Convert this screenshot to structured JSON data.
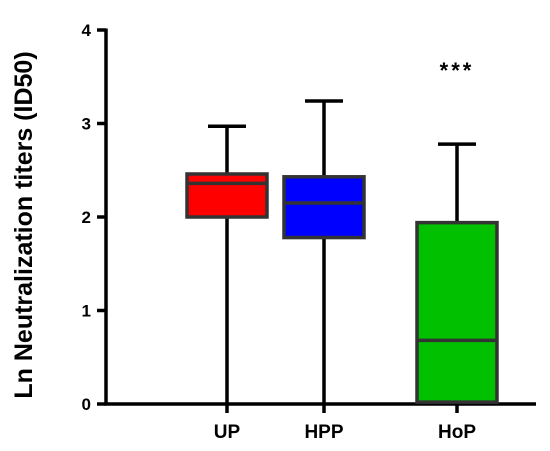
{
  "chart_data": {
    "type": "box",
    "ylabel": "Ln Neutralization titers (ID50)",
    "xlabel": "",
    "ylim": [
      0,
      4
    ],
    "yticks": [
      "0",
      "1",
      "2",
      "3",
      "4"
    ],
    "categories": [
      "UP",
      "HPP",
      "HoP"
    ],
    "boxes": [
      {
        "category": "UP",
        "min": 0,
        "q1": 2.0,
        "median": 2.36,
        "q3": 2.46,
        "max": 2.97,
        "color": "#ff0000",
        "annotation": ""
      },
      {
        "category": "HPP",
        "min": 0,
        "q1": 1.78,
        "median": 2.15,
        "q3": 2.43,
        "max": 3.24,
        "color": "#0000ff",
        "annotation": ""
      },
      {
        "category": "HoP",
        "min": 0,
        "q1": 0.02,
        "median": 0.68,
        "q3": 1.94,
        "max": 2.78,
        "color": "#00c000",
        "annotation": "***"
      }
    ],
    "grid": false,
    "legend": "none"
  }
}
